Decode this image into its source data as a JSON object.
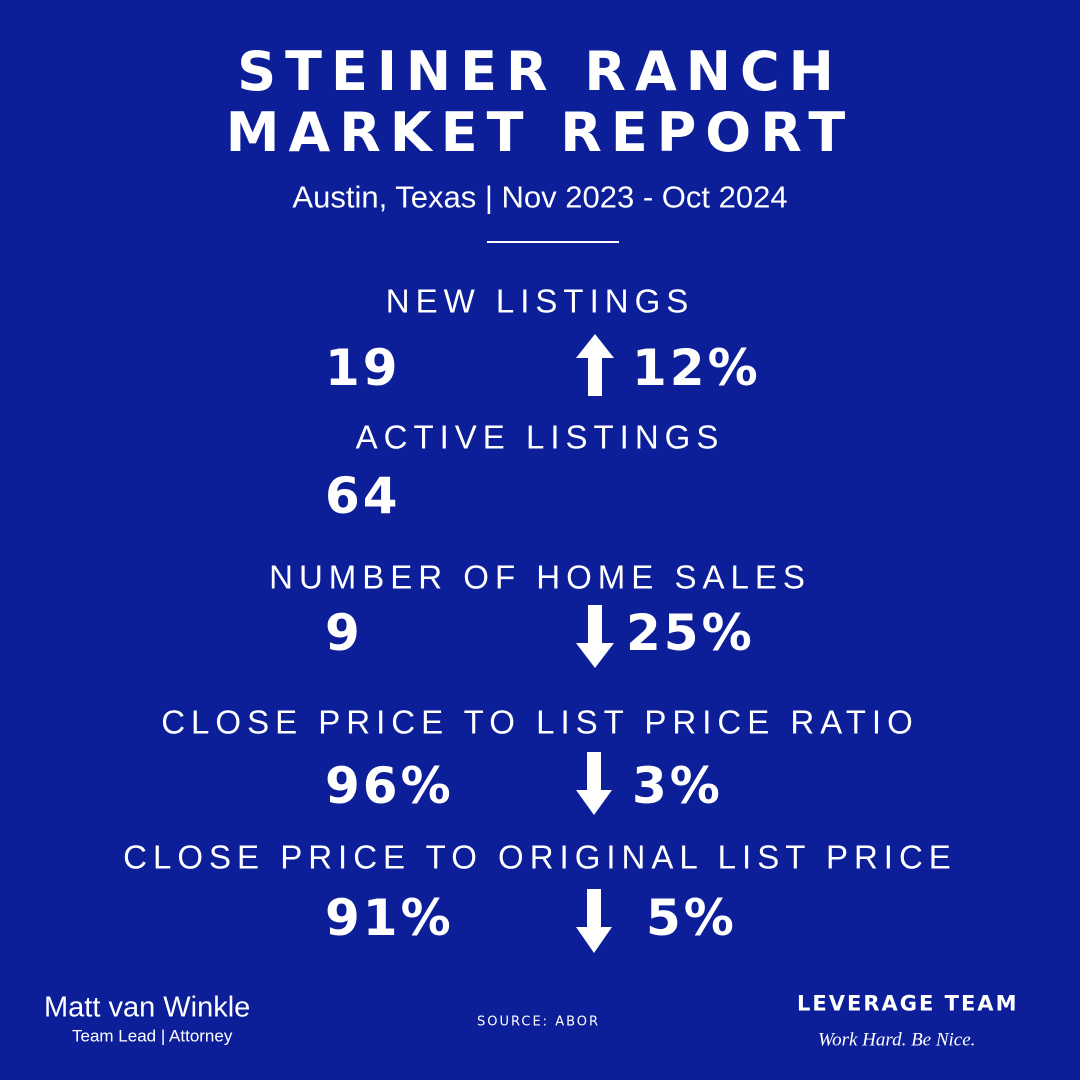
{
  "header": {
    "title": [
      "STEINER RANCH",
      "MARKET REPORT"
    ],
    "subtitle": "Austin, Texas |  Nov 2023 - Oct 2024"
  },
  "metrics": [
    {
      "label": "NEW LISTINGS",
      "value": "19",
      "change": "12%"
    },
    {
      "label": "ACTIVE LISTINGS",
      "value": "64"
    },
    {
      "label": "NUMBER OF HOME SALES",
      "value": "9",
      "change": "25%"
    },
    {
      "label": "CLOSE PRICE TO LIST PRICE RATIO",
      "value": "96%",
      "change": "3%"
    },
    {
      "label": "CLOSE PRICE TO ORIGINAL LIST PRICE",
      "value": "91%",
      "change": "5%"
    }
  ],
  "footer": {
    "name": "Matt van Winkle",
    "role": "Team Lead | Attorney",
    "source": "SOURCE: ABOR",
    "brand": "LEVERAGE TEAM",
    "tagline": "Work Hard. Be Nice."
  }
}
